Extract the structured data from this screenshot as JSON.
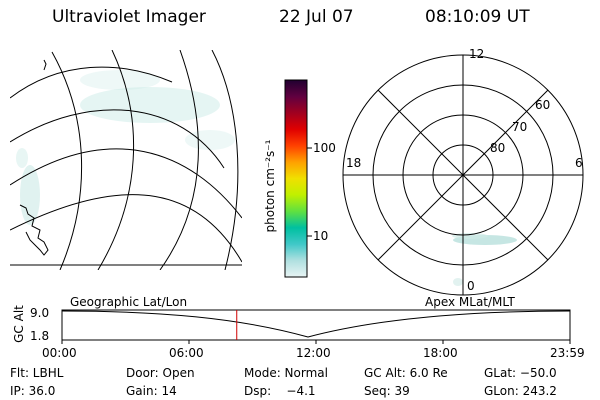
{
  "header": {
    "title": "Ultraviolet Imager",
    "date": "22 Jul 07",
    "time": "08:10:09 UT"
  },
  "colorbar": {
    "unit_label": "photon cm⁻²s⁻¹",
    "ticks": [
      "100",
      "10"
    ]
  },
  "polar_plot": {
    "mlt_labels": [
      "12",
      "18",
      "6",
      "0"
    ],
    "lat_labels": [
      "60",
      "70",
      "80"
    ]
  },
  "orbit_panel": {
    "left_label": "Geographic Lat/Lon",
    "right_label": "Apex MLat/MLT",
    "y_axis_label": "GC Alt",
    "y_ticks": [
      "9.0",
      "1.8"
    ],
    "x_ticks": [
      "00:00",
      "06:00",
      "12:00",
      "18:00",
      "23:59"
    ],
    "current_time_fraction": 0.344
  },
  "footer": {
    "row1": {
      "filter": "Flt: LBHL",
      "door": "Door: Open",
      "mode": "Mode: Normal",
      "gc_alt": "GC Alt: 6.0 Re",
      "glat": "GLat: −50.0"
    },
    "row2": {
      "ip": "IP: 36.0",
      "gain": "Gain: 14",
      "dsp": "Dsp:    −4.1",
      "seq": "Seq: 39",
      "glon": "GLon: 243.2"
    }
  },
  "colors": {
    "colorbar_stops": [
      "#e8f4f4",
      "#b0e0e0",
      "#40c8c8",
      "#00c0a0",
      "#60e040",
      "#c0f000",
      "#f0e000",
      "#ffa000",
      "#ff4000",
      "#e00000",
      "#a00020",
      "#600040",
      "#200030"
    ],
    "aurora": "#b8e0dc",
    "time_marker": "#d00000"
  }
}
